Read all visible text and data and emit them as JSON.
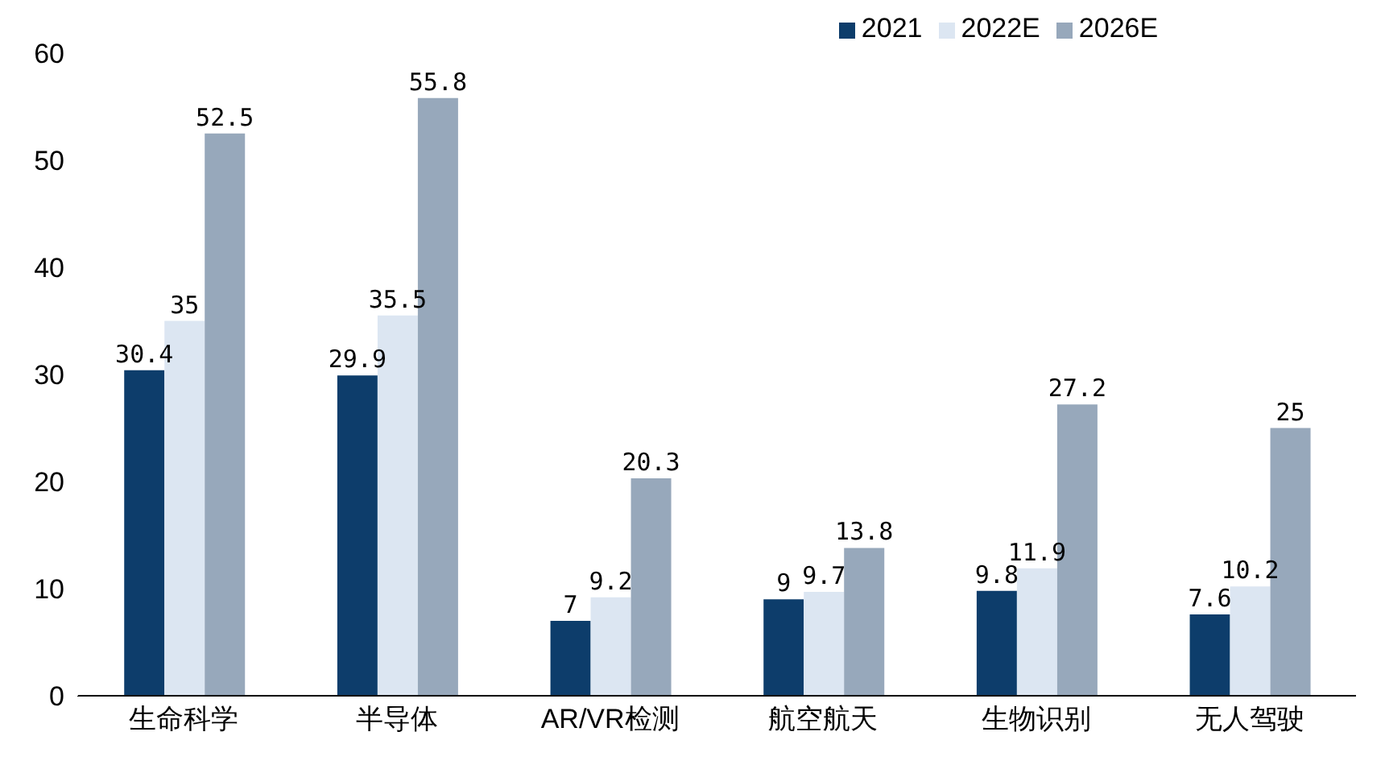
{
  "chart_data": {
    "type": "bar",
    "categories": [
      "生命科学",
      "半导体",
      "AR/VR检测",
      "航空航天",
      "生物识别",
      "无人驾驶"
    ],
    "series": [
      {
        "name": "2021",
        "color": "#0d3d6b",
        "values": [
          30.4,
          29.9,
          7,
          9,
          9.8,
          7.6
        ]
      },
      {
        "name": "2022E",
        "color": "#dce6f2",
        "values": [
          35,
          35.5,
          9.2,
          9.7,
          11.9,
          10.2
        ]
      },
      {
        "name": "2026E",
        "color": "#97a8bb",
        "values": [
          52.5,
          55.8,
          20.3,
          13.8,
          27.2,
          25
        ]
      }
    ],
    "ylim": [
      0,
      60
    ],
    "yticks": [
      0,
      10,
      20,
      30,
      40,
      50,
      60
    ],
    "grid": false,
    "legend": "top",
    "data_labels": true
  }
}
